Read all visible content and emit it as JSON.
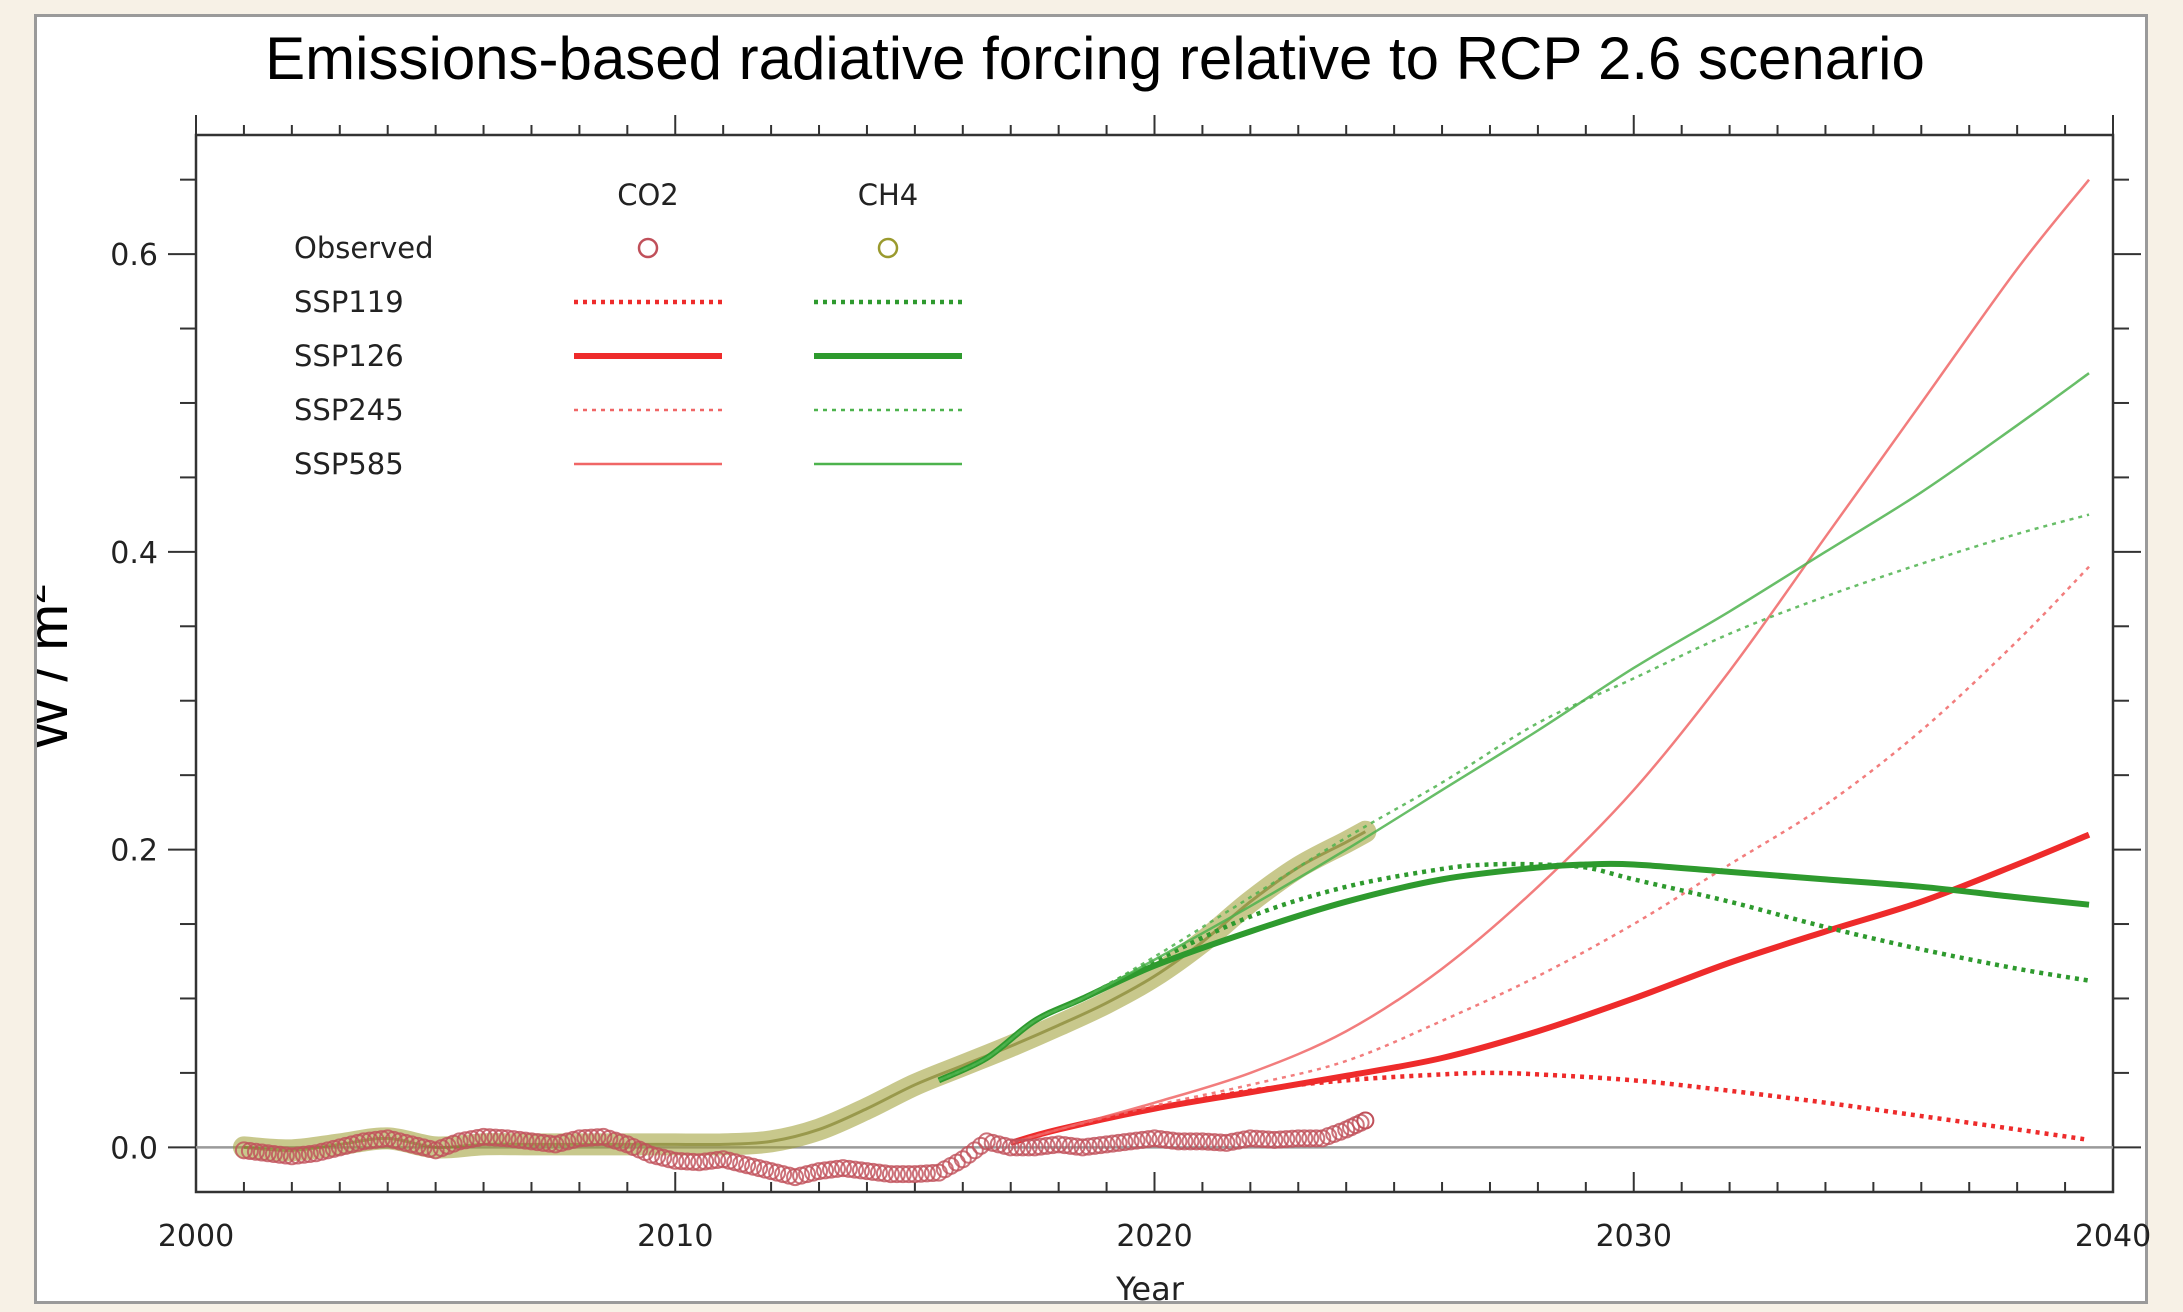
{
  "chart_data": {
    "type": "line",
    "title": "Emissions-based radiative forcing relative to RCP 2.6 scenario",
    "xlabel": "Year",
    "ylabel": "W / m",
    "ylabel_sup": "2",
    "xlim": [
      2000,
      2040
    ],
    "ylim": [
      -0.03,
      0.68
    ],
    "xticks": [
      2000,
      2010,
      2020,
      2030,
      2040
    ],
    "xtick_labels": [
      "2000",
      "2010",
      "2020",
      "2030",
      "2040"
    ],
    "yticks": [
      0.0,
      0.2,
      0.4,
      0.6
    ],
    "ytick_labels": [
      "0.0",
      "0.2",
      "0.4",
      "0.6"
    ],
    "grid": false,
    "zero_line": true,
    "legend": {
      "placement": "top-left",
      "column_headers": [
        {
          "label": "CO2",
          "color": "#e8262a"
        },
        {
          "label": "CH4",
          "color": "#2a9a2a"
        }
      ],
      "rows": [
        "Observed",
        "SSP119",
        "SSP126",
        "SSP245",
        "SSP585"
      ]
    },
    "colors": {
      "co2": "#ee2b2b",
      "co2_light": "#f06666",
      "ch4": "#2e9a2e",
      "ch4_light": "#4db34d",
      "obs_co2": "#c0505a",
      "obs_ch4": "#9a9a2e"
    },
    "observed": [
      {
        "name": "CO2",
        "color": "#c0505a",
        "x": [
          2001.0,
          2001.5,
          2002.0,
          2002.5,
          2003.0,
          2003.5,
          2004.0,
          2004.5,
          2005.0,
          2005.5,
          2006.0,
          2006.5,
          2007.0,
          2007.5,
          2008.0,
          2008.5,
          2009.0,
          2009.5,
          2010.0,
          2010.5,
          2011.0,
          2011.5,
          2012.0,
          2012.5,
          2013.0,
          2013.5,
          2014.0,
          2014.5,
          2015.0,
          2015.5,
          2016.0,
          2016.5,
          2017.0,
          2017.5,
          2018.0,
          2018.5,
          2019.0,
          2019.5,
          2020.0,
          2020.5,
          2021.0,
          2021.5,
          2022.0,
          2022.5,
          2023.0,
          2023.5,
          2024.0,
          2024.4
        ],
        "y": [
          -0.002,
          -0.004,
          -0.006,
          -0.004,
          0.0,
          0.004,
          0.006,
          0.002,
          -0.002,
          0.004,
          0.007,
          0.006,
          0.004,
          0.002,
          0.006,
          0.007,
          0.002,
          -0.005,
          -0.009,
          -0.01,
          -0.008,
          -0.012,
          -0.016,
          -0.02,
          -0.016,
          -0.014,
          -0.016,
          -0.018,
          -0.018,
          -0.017,
          -0.008,
          0.004,
          0.0,
          0.0,
          0.002,
          0.0,
          0.002,
          0.004,
          0.006,
          0.004,
          0.004,
          0.003,
          0.006,
          0.005,
          0.006,
          0.006,
          0.012,
          0.018
        ]
      },
      {
        "name": "CH4",
        "color": "#9a9a2e",
        "x": [
          2001.0,
          2002.0,
          2003.0,
          2004.0,
          2005.0,
          2006.0,
          2007.0,
          2008.0,
          2009.0,
          2010.0,
          2011.0,
          2012.0,
          2013.0,
          2014.0,
          2015.0,
          2016.0,
          2017.0,
          2018.0,
          2019.0,
          2020.0,
          2021.0,
          2022.0,
          2023.0,
          2024.0,
          2024.4
        ],
        "y": [
          0.0,
          -0.002,
          0.002,
          0.006,
          0.0,
          0.002,
          0.002,
          0.002,
          0.002,
          0.002,
          0.002,
          0.004,
          0.012,
          0.026,
          0.042,
          0.055,
          0.068,
          0.082,
          0.097,
          0.115,
          0.138,
          0.165,
          0.188,
          0.205,
          0.212
        ]
      }
    ],
    "series": [
      {
        "name": "CO2 SSP119",
        "gas": "CO2",
        "scenario": "SSP119",
        "color": "#ee2b2b",
        "x": [
          2017.0,
          2018.0,
          2020.0,
          2022.0,
          2024.0,
          2026.0,
          2027.0,
          2028.0,
          2030.0,
          2032.0,
          2034.0,
          2036.0,
          2038.0,
          2039.5
        ],
        "y": [
          0.003,
          0.012,
          0.026,
          0.038,
          0.045,
          0.049,
          0.05,
          0.049,
          0.045,
          0.038,
          0.03,
          0.021,
          0.012,
          0.005
        ]
      },
      {
        "name": "CO2 SSP126",
        "gas": "CO2",
        "scenario": "SSP126",
        "color": "#ee2b2b",
        "x": [
          2017.0,
          2018.0,
          2020.0,
          2022.0,
          2024.0,
          2026.0,
          2028.0,
          2030.0,
          2032.0,
          2034.0,
          2036.0,
          2038.0,
          2039.5
        ],
        "y": [
          0.003,
          0.012,
          0.026,
          0.037,
          0.048,
          0.06,
          0.078,
          0.1,
          0.124,
          0.145,
          0.165,
          0.19,
          0.21
        ]
      },
      {
        "name": "CO2 SSP245",
        "gas": "CO2",
        "scenario": "SSP245",
        "color": "#f06666",
        "x": [
          2017.0,
          2018.0,
          2020.0,
          2022.0,
          2024.0,
          2026.0,
          2028.0,
          2030.0,
          2032.0,
          2034.0,
          2036.0,
          2038.0,
          2039.5
        ],
        "y": [
          0.003,
          0.012,
          0.028,
          0.042,
          0.058,
          0.085,
          0.115,
          0.15,
          0.19,
          0.23,
          0.28,
          0.34,
          0.39
        ]
      },
      {
        "name": "CO2 SSP585",
        "gas": "CO2",
        "scenario": "SSP585",
        "color": "#f06666",
        "x": [
          2017.0,
          2018.0,
          2020.0,
          2022.0,
          2024.0,
          2026.0,
          2028.0,
          2030.0,
          2032.0,
          2034.0,
          2036.0,
          2038.0,
          2039.5
        ],
        "y": [
          0.003,
          0.012,
          0.03,
          0.05,
          0.078,
          0.12,
          0.175,
          0.24,
          0.32,
          0.41,
          0.5,
          0.59,
          0.65
        ]
      },
      {
        "name": "CH4 SSP119",
        "gas": "CH4",
        "scenario": "SSP119",
        "color": "#2e9a2e",
        "x": [
          2015.5,
          2016.5,
          2017.5,
          2018.5,
          2020.0,
          2022.0,
          2024.0,
          2026.0,
          2027.0,
          2028.0,
          2029.0,
          2030.0,
          2032.0,
          2034.0,
          2036.0,
          2038.0,
          2039.5
        ],
        "y": [
          0.045,
          0.06,
          0.085,
          0.1,
          0.125,
          0.155,
          0.175,
          0.187,
          0.19,
          0.19,
          0.188,
          0.18,
          0.165,
          0.148,
          0.133,
          0.12,
          0.112
        ]
      },
      {
        "name": "CH4 SSP126",
        "gas": "CH4",
        "scenario": "SSP126",
        "color": "#2e9a2e",
        "x": [
          2015.5,
          2016.5,
          2017.5,
          2018.5,
          2020.0,
          2022.0,
          2024.0,
          2026.0,
          2028.0,
          2029.0,
          2030.0,
          2032.0,
          2034.0,
          2036.0,
          2038.0,
          2039.5
        ],
        "y": [
          0.045,
          0.06,
          0.085,
          0.1,
          0.122,
          0.145,
          0.165,
          0.18,
          0.188,
          0.19,
          0.19,
          0.185,
          0.18,
          0.175,
          0.168,
          0.163
        ]
      },
      {
        "name": "CH4 SSP245",
        "gas": "CH4",
        "scenario": "SSP245",
        "color": "#4db34d",
        "x": [
          2015.5,
          2016.5,
          2017.5,
          2018.5,
          2020.0,
          2022.0,
          2024.0,
          2026.0,
          2028.0,
          2030.0,
          2032.0,
          2034.0,
          2036.0,
          2038.0,
          2039.5
        ],
        "y": [
          0.045,
          0.06,
          0.085,
          0.1,
          0.128,
          0.168,
          0.208,
          0.245,
          0.285,
          0.315,
          0.345,
          0.37,
          0.392,
          0.412,
          0.425
        ]
      },
      {
        "name": "CH4 SSP585",
        "gas": "CH4",
        "scenario": "SSP585",
        "color": "#4db34d",
        "x": [
          2015.5,
          2016.5,
          2017.5,
          2018.5,
          2020.0,
          2022.0,
          2024.0,
          2026.0,
          2028.0,
          2030.0,
          2032.0,
          2034.0,
          2036.0,
          2038.0,
          2039.5
        ],
        "y": [
          0.045,
          0.06,
          0.085,
          0.1,
          0.126,
          0.162,
          0.2,
          0.24,
          0.28,
          0.322,
          0.36,
          0.4,
          0.44,
          0.485,
          0.52
        ]
      }
    ]
  }
}
